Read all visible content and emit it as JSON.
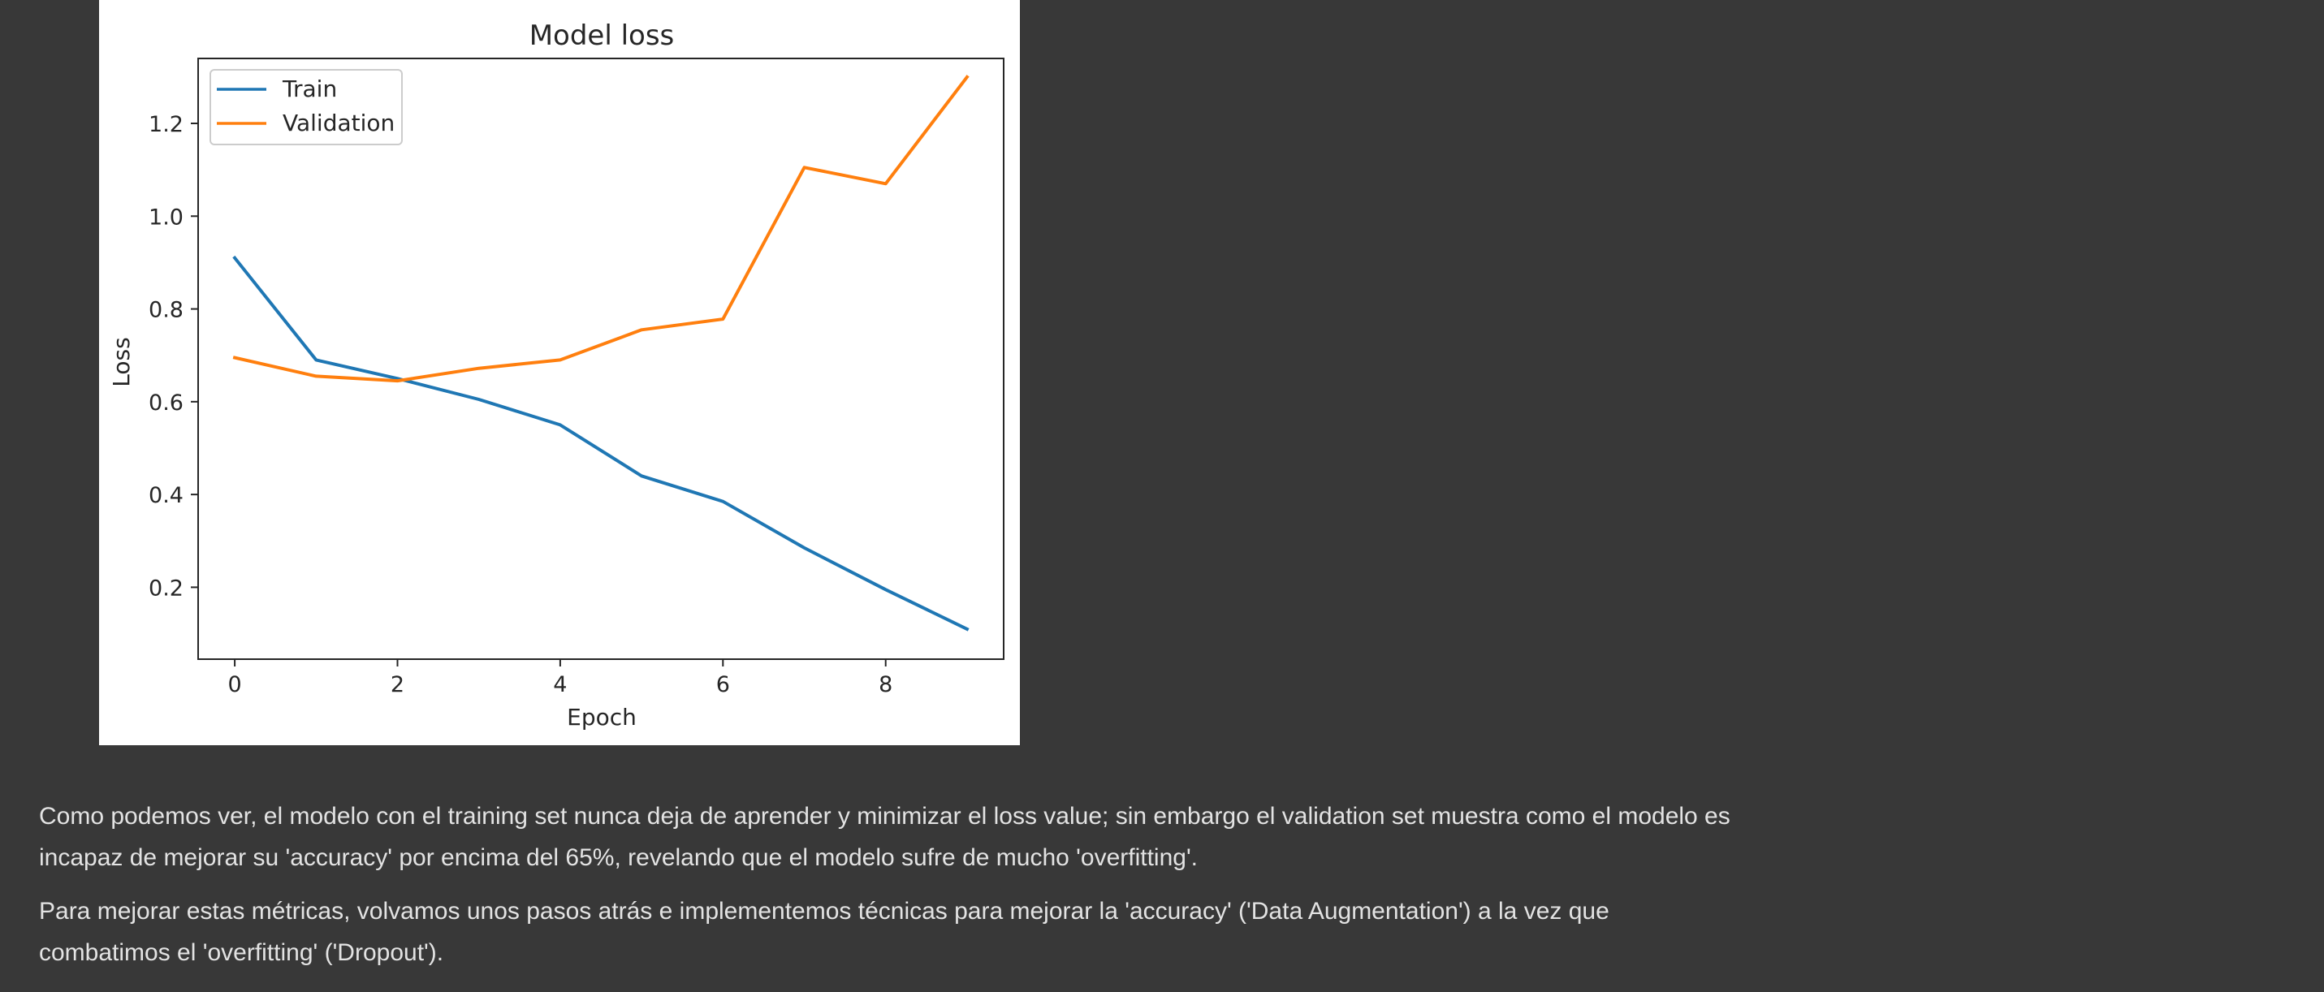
{
  "chart_data": {
    "type": "line",
    "title": "Model loss",
    "xlabel": "Epoch",
    "ylabel": "Loss",
    "x": [
      0,
      1,
      2,
      3,
      4,
      5,
      6,
      7,
      8,
      9
    ],
    "xlim": [
      -0.45,
      9.45
    ],
    "ylim": [
      0.045,
      1.34
    ],
    "xticks": [
      0,
      2,
      4,
      6,
      8
    ],
    "yticks": [
      0.2,
      0.4,
      0.6,
      0.8,
      1.0,
      1.2
    ],
    "xtick_labels": [
      "0",
      "2",
      "4",
      "6",
      "8"
    ],
    "ytick_labels": [
      "0.2",
      "0.4",
      "0.6",
      "0.8",
      "1.0",
      "1.2"
    ],
    "grid": false,
    "legend_position": "top-left",
    "series": [
      {
        "name": "Train",
        "color": "#1f77b4",
        "values": [
          0.91,
          0.69,
          0.65,
          0.605,
          0.55,
          0.44,
          0.385,
          0.285,
          0.195,
          0.11
        ]
      },
      {
        "name": "Validation",
        "color": "#ff7f0e",
        "values": [
          0.695,
          0.655,
          0.645,
          0.672,
          0.69,
          0.755,
          0.778,
          1.105,
          1.07,
          1.3
        ]
      }
    ]
  },
  "notes": {
    "paragraph_1": "Como podemos ver, el modelo con el training set nunca deja de aprender y minimizar el loss value; sin embargo el validation set muestra como el modelo es incapaz de mejorar su 'accuracy' por encima del 65%, revelando que el modelo sufre de mucho 'overfitting'.",
    "paragraph_2": "Para mejorar estas métricas, volvamos unos pasos atrás e implementemos técnicas para mejorar la 'accuracy' ('Data Augmentation') a la vez que combatimos el 'overfitting' ('Dropout')."
  }
}
